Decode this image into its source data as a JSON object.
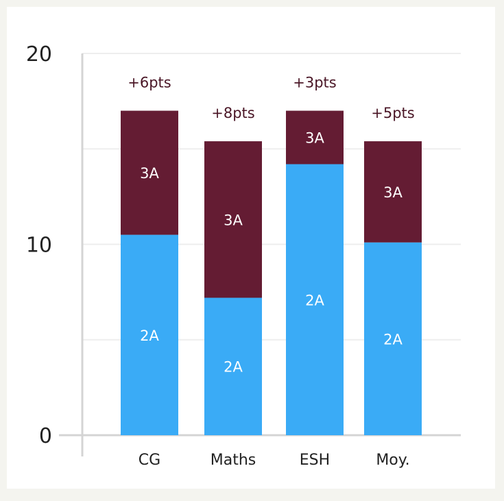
{
  "chart_data": {
    "type": "bar",
    "stacked": true,
    "categories": [
      "CG",
      "Maths",
      "ESH",
      "Moy."
    ],
    "series": [
      {
        "name": "2A",
        "values": [
          10.5,
          7.2,
          14.2,
          10.1
        ],
        "color": "#3aabf6"
      },
      {
        "name": "3A",
        "values": [
          6.5,
          8.2,
          2.8,
          5.3
        ],
        "color": "#641c33"
      }
    ],
    "annotations": [
      "+6pts",
      "+8pts",
      "+3pts",
      "+5pts"
    ],
    "ylim": [
      0,
      20
    ],
    "yticks": [
      0,
      10,
      20
    ],
    "gridlines": [
      5,
      10,
      15,
      20
    ],
    "grid": true,
    "legend": "none",
    "title": "",
    "xlabel": "",
    "ylabel": ""
  }
}
